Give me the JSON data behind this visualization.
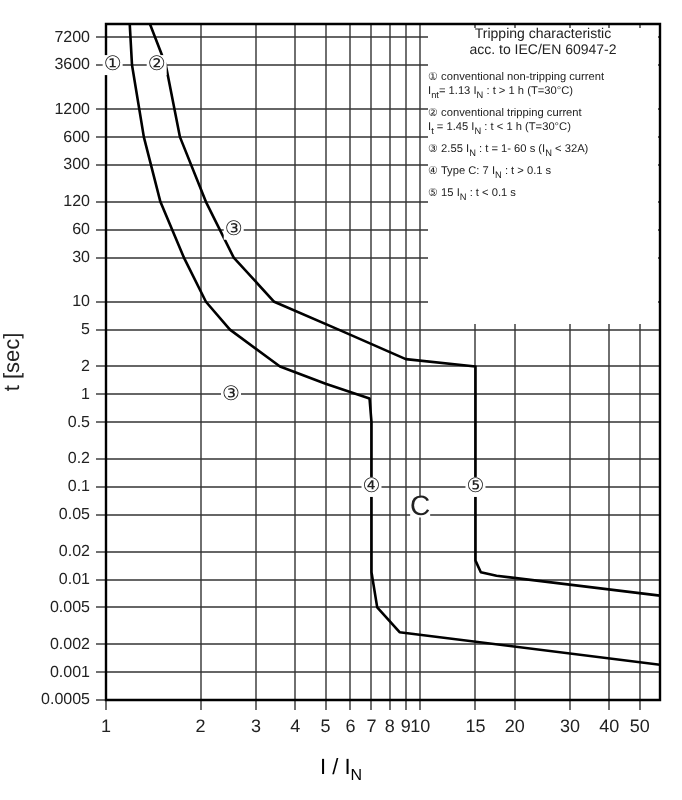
{
  "chart_data": {
    "type": "line",
    "xlabel": "I / I$_{N}$",
    "ylabel": "t [sec]",
    "log": "xy",
    "grid": true,
    "xlim": [
      1,
      58
    ],
    "xticks": [
      1,
      2,
      3,
      4,
      5,
      6,
      7,
      8,
      9,
      10,
      15,
      20,
      30,
      40,
      50
    ],
    "ylim": [
      0.0005,
      10000
    ],
    "yticks": [
      0.0005,
      0.001,
      0.002,
      0.005,
      0.01,
      0.02,
      0.05,
      0.1,
      0.2,
      0.5,
      1,
      2,
      5,
      10,
      30,
      60,
      120,
      300,
      600,
      1200,
      3600,
      7200
    ],
    "series": [
      {
        "color": "#000000",
        "x": [
          1.19,
          1.21,
          1.32,
          1.49,
          1.77,
          2.08,
          2.48,
          3.58,
          5.0,
          6.9,
          7,
          7,
          7.3,
          8.6,
          58
        ],
        "values": [
          10000,
          3600,
          600,
          120,
          30,
          10,
          5,
          2,
          1.3,
          0.9,
          0.5,
          0.012,
          0.005,
          0.0027,
          0.0012
        ]
      },
      {
        "color": "#000000",
        "x": [
          1.38,
          1.55,
          1.72,
          2.08,
          2.55,
          3.43,
          5.5,
          9,
          15,
          15,
          15.6,
          17.5,
          58
        ],
        "values": [
          10000,
          3600,
          600,
          120,
          30,
          10,
          5,
          2.4,
          2,
          0.016,
          0.012,
          0.011,
          0.0067
        ]
      }
    ],
    "annotations": [
      "Tripping characteristic",
      "acc. to IEC/EN 60947-2",
      "① conventional non-tripping current",
      "I$_{nt}$= 1.13 I$_{N}$ : t > 1 h  (T=30°C)",
      "② conventional tripping current",
      "I$_{t}$ = 1.45 I$_{N}$ : t < 1 h  (T=30°C)",
      "③ 2.55 I$_{N}$ : t = 1- 60 s (I$_{N}$ < 32A)",
      "④ Type C:  7 I$_{N}$ : t > 0.1 s",
      "⑤ 15 I$_{N}$ : t < 0.1 s",
      {
        "text": "①",
        "x": 1.05,
        "y": 3600
      },
      {
        "text": "②",
        "x": 1.45,
        "y": 3600
      },
      {
        "text": "③",
        "x": 2.55,
        "y": 60
      },
      {
        "text": "③",
        "x": 2.5,
        "y": 1
      },
      {
        "text": "④",
        "x": 7,
        "y": 0.1
      },
      {
        "text": "⑤",
        "x": 15,
        "y": 0.1
      },
      {
        "text": "C",
        "x": 10,
        "y": 0.06
      }
    ]
  }
}
